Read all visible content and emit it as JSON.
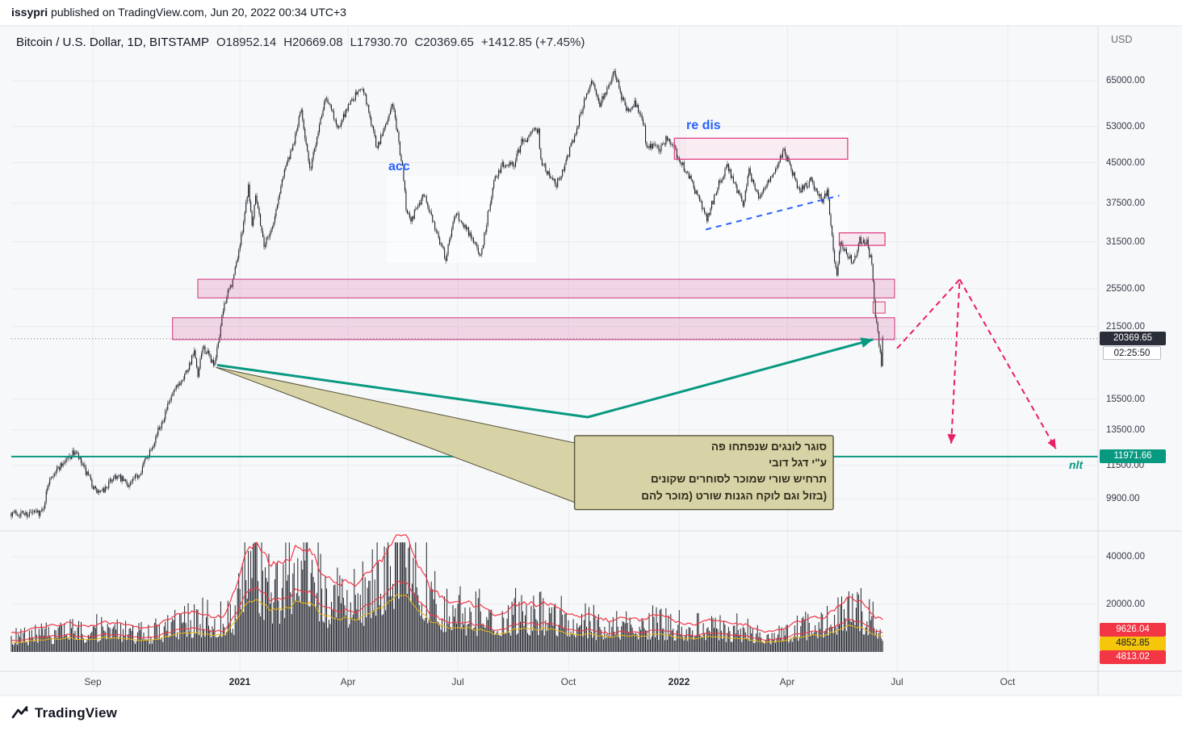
{
  "publish_bar": {
    "author": "issypri",
    "rest": " published on TradingView.com, Jun 20, 2022 00:34 UTC+3"
  },
  "header": {
    "symbol": "Bitcoin / U.S. Dollar, 1D, BITSTAMP",
    "ohlc": {
      "open": "O18952.14",
      "high": "H20669.08",
      "low": "L17930.70",
      "close": "C20369.65",
      "change": "+1412.85 (+7.45%)"
    }
  },
  "axis": {
    "currency": "USD",
    "price_ticks": [
      {
        "label": "65000.00",
        "value": 65000
      },
      {
        "label": "53000.00",
        "value": 53000
      },
      {
        "label": "45000.00",
        "value": 45000
      },
      {
        "label": "37500.00",
        "value": 37500
      },
      {
        "label": "31500.00",
        "value": 31500
      },
      {
        "label": "25500.00",
        "value": 25500
      },
      {
        "label": "21500.00",
        "value": 21500
      },
      {
        "label": "15500.00",
        "value": 15500
      },
      {
        "label": "13500.00",
        "value": 13500
      },
      {
        "label": "11500.00",
        "value": 11500
      },
      {
        "label": "9900.00",
        "value": 9900
      }
    ],
    "volume_ticks": [
      {
        "label": "40000.00",
        "value": 40000
      },
      {
        "label": "20000.00",
        "value": 20000
      }
    ],
    "time_ticks": [
      {
        "label": "Sep",
        "date": "2020-09-01"
      },
      {
        "label": "2021",
        "date": "2021-01-01",
        "major": true
      },
      {
        "label": "Apr",
        "date": "2021-04-01"
      },
      {
        "label": "Jul",
        "date": "2021-07-01"
      },
      {
        "label": "Oct",
        "date": "2021-10-01"
      },
      {
        "label": "2022",
        "date": "2022-01-01",
        "major": true
      },
      {
        "label": "Apr",
        "date": "2022-04-01"
      },
      {
        "label": "Jul",
        "date": "2022-07-01"
      },
      {
        "label": "Oct",
        "date": "2022-10-01"
      }
    ]
  },
  "price_labels": {
    "last_price": {
      "label": "20369.65",
      "value": 20369.65,
      "bg": "#2a2e39",
      "fg": "#ffffff"
    },
    "countdown": {
      "label": "02:25:50"
    },
    "support": {
      "label": "11971.66",
      "value": 11971.66,
      "bg": "#089981",
      "fg": "#ffffff"
    },
    "indicators": [
      {
        "label": "9626.04",
        "value": 9626.04,
        "bg": "#f23645",
        "fg": "#ffffff"
      },
      {
        "label": "4852.85",
        "value": 4852.85,
        "bg": "#f5c60a",
        "fg": "#131722"
      },
      {
        "label": "4813.02",
        "value": 4813.02,
        "bg": "#f23645",
        "fg": "#ffffff"
      }
    ]
  },
  "footer": {
    "logo_text": "TradingView"
  },
  "chart_data": {
    "type": "candlestick",
    "title": "Bitcoin / U.S. Dollar, 1D, BITSTAMP",
    "x_domain": [
      "2020-06-25",
      "2022-12-15"
    ],
    "y_domain_log": [
      8630,
      83350
    ],
    "y_scale": "log",
    "last_close": 20369.65,
    "price_anchors": [
      [
        "2020-06-25",
        9300
      ],
      [
        "2020-07-08",
        9250
      ],
      [
        "2020-07-21",
        9350
      ],
      [
        "2020-07-27",
        10950
      ],
      [
        "2020-08-11",
        11900
      ],
      [
        "2020-08-17",
        12250
      ],
      [
        "2020-09-03",
        10250
      ],
      [
        "2020-09-08",
        10150
      ],
      [
        "2020-09-19",
        11000
      ],
      [
        "2020-10-01",
        10550
      ],
      [
        "2020-10-09",
        11050
      ],
      [
        "2020-10-21",
        12750
      ],
      [
        "2020-11-05",
        15600
      ],
      [
        "2020-11-18",
        17700
      ],
      [
        "2020-11-24",
        19150
      ],
      [
        "2020-11-27",
        17050
      ],
      [
        "2020-12-01",
        19650
      ],
      [
        "2020-12-11",
        18050
      ],
      [
        "2020-12-19",
        23900
      ],
      [
        "2020-12-26",
        26400
      ],
      [
        "2021-01-02",
        32100
      ],
      [
        "2021-01-08",
        40700
      ],
      [
        "2021-01-11",
        33950
      ],
      [
        "2021-01-14",
        39300
      ],
      [
        "2021-01-21",
        31000
      ],
      [
        "2021-01-29",
        34300
      ],
      [
        "2021-02-07",
        44000
      ],
      [
        "2021-02-13",
        47200
      ],
      [
        "2021-02-21",
        57400
      ],
      [
        "2021-02-28",
        43250
      ],
      [
        "2021-03-13",
        61100
      ],
      [
        "2021-03-24",
        52300
      ],
      [
        "2021-04-02",
        59000
      ],
      [
        "2021-04-13",
        63500
      ],
      [
        "2021-04-25",
        48000
      ],
      [
        "2021-05-08",
        58700
      ],
      [
        "2021-05-16",
        44000
      ],
      [
        "2021-05-19",
        37000
      ],
      [
        "2021-05-23",
        34800
      ],
      [
        "2021-06-03",
        39100
      ],
      [
        "2021-06-21",
        29200
      ],
      [
        "2021-06-29",
        35900
      ],
      [
        "2021-07-09",
        33200
      ],
      [
        "2021-07-20",
        29600
      ],
      [
        "2021-07-25",
        34500
      ],
      [
        "2021-07-31",
        41600
      ],
      [
        "2021-08-07",
        44600
      ],
      [
        "2021-08-17",
        44800
      ],
      [
        "2021-08-23",
        49300
      ],
      [
        "2021-09-06",
        52600
      ],
      [
        "2021-09-08",
        45100
      ],
      [
        "2021-09-21",
        40800
      ],
      [
        "2021-09-26",
        43400
      ],
      [
        "2021-10-05",
        50100
      ],
      [
        "2021-10-20",
        65900
      ],
      [
        "2021-10-27",
        58500
      ],
      [
        "2021-11-08",
        67500
      ],
      [
        "2021-11-18",
        56700
      ],
      [
        "2021-11-25",
        58900
      ],
      [
        "2021-12-03",
        53600
      ],
      [
        "2021-12-04",
        48800
      ],
      [
        "2021-12-16",
        48000
      ],
      [
        "2021-12-23",
        50700
      ],
      [
        "2021-12-31",
        46200
      ],
      [
        "2022-01-10",
        41900
      ],
      [
        "2022-01-21",
        36400
      ],
      [
        "2022-01-24",
        35100
      ],
      [
        "2022-02-04",
        41500
      ],
      [
        "2022-02-10",
        44400
      ],
      [
        "2022-02-23",
        37300
      ],
      [
        "2022-02-28",
        43200
      ],
      [
        "2022-03-08",
        38700
      ],
      [
        "2022-03-16",
        41100
      ],
      [
        "2022-03-29",
        47400
      ],
      [
        "2022-04-11",
        39600
      ],
      [
        "2022-04-20",
        41400
      ],
      [
        "2022-04-30",
        37700
      ],
      [
        "2022-05-04",
        39800
      ],
      [
        "2022-05-09",
        30300
      ],
      [
        "2022-05-12",
        27200
      ],
      [
        "2022-05-15",
        31200
      ],
      [
        "2022-05-26",
        28600
      ],
      [
        "2022-05-31",
        31800
      ],
      [
        "2022-06-06",
        31400
      ],
      [
        "2022-06-10",
        28500
      ],
      [
        "2022-06-13",
        22500
      ],
      [
        "2022-06-15",
        21200
      ],
      [
        "2022-06-18",
        17900
      ],
      [
        "2022-06-19",
        20369.65
      ]
    ],
    "volume_anchors": [
      [
        "2020-06-25",
        5500
      ],
      [
        "2020-09-03",
        9000
      ],
      [
        "2020-10-15",
        7000
      ],
      [
        "2020-11-25",
        13000
      ],
      [
        "2020-12-26",
        14000
      ],
      [
        "2021-01-11",
        38000
      ],
      [
        "2021-01-29",
        22000
      ],
      [
        "2021-02-23",
        43000
      ],
      [
        "2021-03-13",
        21000
      ],
      [
        "2021-04-18",
        24000
      ],
      [
        "2021-05-19",
        44000
      ],
      [
        "2021-06-15",
        16000
      ],
      [
        "2021-07-26",
        14500
      ],
      [
        "2021-09-07",
        15500
      ],
      [
        "2021-10-20",
        11000
      ],
      [
        "2021-12-04",
        11500
      ],
      [
        "2022-01-22",
        9500
      ],
      [
        "2022-02-24",
        9000
      ],
      [
        "2022-03-20",
        6500
      ],
      [
        "2022-05-10",
        14500
      ],
      [
        "2022-05-12",
        16000
      ],
      [
        "2022-06-13",
        15500
      ],
      [
        "2022-06-19",
        5000
      ]
    ],
    "zones": [
      {
        "name": "accumulation-box",
        "layer": "under",
        "from": [
          "2021-05-04",
          42230
        ],
        "to": [
          "2021-09-03",
          28770
        ],
        "fill": "rgba(255,255,255,0.5)",
        "stroke": "#ffffff",
        "stroke_width": 1
      },
      {
        "name": "redistribution-box",
        "layer": "under",
        "from": [
          "2022-01-08",
          51530
        ],
        "to": [
          "2022-05-21",
          31880
        ],
        "fill": "rgba(255,255,255,0.5)",
        "stroke": "#ffffff",
        "stroke_width": 1
      },
      {
        "name": "supply-zone-48k",
        "layer": "over",
        "from": [
          "2021-12-28",
          50230
        ],
        "to": [
          "2022-05-21",
          45700
        ],
        "fill": "rgba(233,30,99,0.07)",
        "stroke": "#e0337c",
        "stroke_width": 1.2
      },
      {
        "name": "supply-zone-31k",
        "layer": "over",
        "from": [
          "2022-05-14",
          32800
        ],
        "to": [
          "2022-06-21",
          31000
        ],
        "fill": "rgba(233,30,99,0.07)",
        "stroke": "#e0337c",
        "stroke_width": 1.2
      },
      {
        "name": "supply-zone-mini",
        "layer": "over",
        "from": [
          "2022-06-11",
          24040
        ],
        "to": [
          "2022-06-21",
          22850
        ],
        "fill": "rgba(233,30,99,0.07)",
        "stroke": "#e0337c",
        "stroke_width": 1
      },
      {
        "name": "resistance-band-25k",
        "layer": "over",
        "from": [
          "2020-11-27",
          26620
        ],
        "to": [
          "2022-06-29",
          24480
        ],
        "fill": "rgba(209,49,126,0.17)",
        "stroke": "#d1317e",
        "stroke_width": 1
      },
      {
        "name": "resistance-band-21k",
        "layer": "over",
        "from": [
          "2020-11-06",
          22380
        ],
        "to": [
          "2022-06-29",
          20280
        ],
        "fill": "rgba(209,49,126,0.17)",
        "stroke": "#d1317e",
        "stroke_width": 1
      }
    ],
    "lines": [
      {
        "name": "support-line-11971",
        "price": 11971.66,
        "color": "#089981",
        "width": 2
      },
      {
        "name": "last-price-dotted-line",
        "price": 20369.65,
        "color": "#787b86",
        "width": 1,
        "dash": "1,3"
      }
    ],
    "trendlines": [
      {
        "name": "redistribution-trendline",
        "points": [
          [
            "2022-01-23",
            33290
          ],
          [
            "2022-05-14",
            38800
          ]
        ],
        "color": "#2962ff",
        "width": 2,
        "dash": "7,6"
      }
    ],
    "arrows": [
      {
        "name": "wyckoff-path-arrow",
        "points": [
          [
            "2020-12-13",
            18080
          ],
          [
            "2021-10-17",
            14300
          ],
          [
            "2022-06-11",
            20290
          ]
        ],
        "color": "#089981",
        "width": 3,
        "head": 10
      },
      {
        "name": "projection-up-then-down-arrow",
        "points": [
          [
            "2022-07-01",
            19490
          ],
          [
            "2022-08-22",
            26600
          ],
          [
            "2022-08-15",
            12690
          ]
        ],
        "color": "#e91e63",
        "width": 2,
        "dash": "7,5",
        "head": 8
      },
      {
        "name": "projection-long-decline-arrow",
        "points": [
          [
            "2022-08-22",
            26600
          ],
          [
            "2022-11-10",
            12400
          ]
        ],
        "color": "#e91e63",
        "width": 2,
        "dash": "7,5",
        "head": 8
      }
    ],
    "labels": [
      {
        "name": "acc-zone-label",
        "text": "acc",
        "at": [
          "2021-05-04",
          44200
        ],
        "color": "#2962ff",
        "size": 16,
        "bold": true
      },
      {
        "name": "redis-zone-label",
        "text": "re dis",
        "at": [
          "2022-01-07",
          53200
        ],
        "color": "#2962ff",
        "size": 16,
        "bold": true
      },
      {
        "name": "nlt-label",
        "text": "nlt",
        "at": [
          "2022-11-21",
          11480
        ],
        "color": "#089981",
        "size": 14,
        "bold": true,
        "italic": true
      }
    ],
    "callout": {
      "anchor": [
        "2020-12-12",
        17900
      ],
      "box": {
        "from": [
          "2021-10-06",
          13160
        ],
        "to": [
          "2022-05-09",
          9430
        ]
      },
      "fill": "#d8d2a7",
      "border": "#55523a",
      "text_color": "#2f2d1b",
      "lines": [
        "סוגר לונגים שנפתחו פה",
        "ע\"י דגל דובי",
        "תרחיש שורי שמוכר לסוחרים שקונים",
        "(בזול וגם לוקח הגנות שורט (מוכר להם"
      ]
    }
  }
}
